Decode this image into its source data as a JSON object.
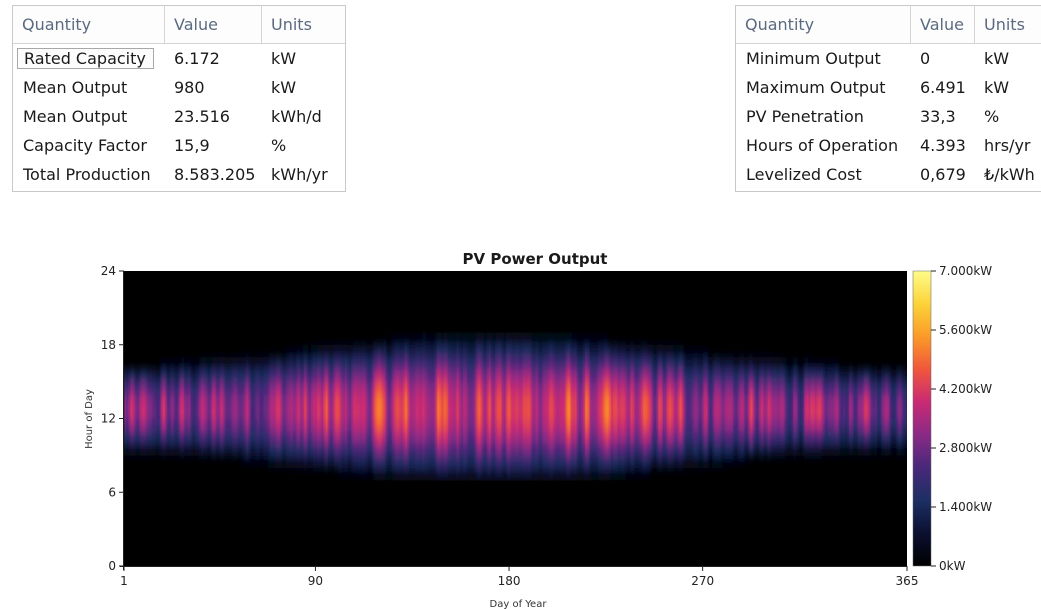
{
  "left_table": {
    "headers": [
      "Quantity",
      "Value",
      "Units"
    ],
    "rows": [
      {
        "quantity": "Rated Capacity",
        "value": "6.172",
        "units": "kW"
      },
      {
        "quantity": "Mean Output",
        "value": "980",
        "units": "kW"
      },
      {
        "quantity": "Mean Output",
        "value": "23.516",
        "units": "kWh/d"
      },
      {
        "quantity": "Capacity Factor",
        "value": "15,9",
        "units": "%"
      },
      {
        "quantity": "Total Production",
        "value": "8.583.205",
        "units": "kWh/yr"
      }
    ]
  },
  "right_table": {
    "headers": [
      "Quantity",
      "Value",
      "Units"
    ],
    "rows": [
      {
        "quantity": "Minimum Output",
        "value": "0",
        "units": "kW"
      },
      {
        "quantity": "Maximum Output",
        "value": "6.491",
        "units": "kW"
      },
      {
        "quantity": "PV Penetration",
        "value": "33,3",
        "units": "%"
      },
      {
        "quantity": "Hours of Operation",
        "value": "4.393",
        "units": "hrs/yr"
      },
      {
        "quantity": "Levelized Cost",
        "value": "0,679",
        "units": "₺/kWh"
      }
    ]
  },
  "chart_data": {
    "type": "heatmap",
    "title": "PV Power Output",
    "xlabel": "Day of Year",
    "ylabel": "Hour of Day",
    "xlim": [
      1,
      365
    ],
    "ylim": [
      0,
      24
    ],
    "x_ticks": [
      "1",
      "90",
      "180",
      "270",
      "365"
    ],
    "y_ticks": [
      "0",
      "6",
      "12",
      "18",
      "24"
    ],
    "colorbar": {
      "min": 0,
      "max": 7000,
      "unit": "kW",
      "tick_labels": [
        "0kW",
        "1.400kW",
        "2.800kW",
        "4.200kW",
        "5.600kW",
        "7.000kW"
      ]
    },
    "colormap": [
      "#000000",
      "#0b1030",
      "#1c2f63",
      "#48287a",
      "#8a2a86",
      "#c92a74",
      "#f0563c",
      "#fb9a28",
      "#fbd339",
      "#fffc8a"
    ]
  }
}
